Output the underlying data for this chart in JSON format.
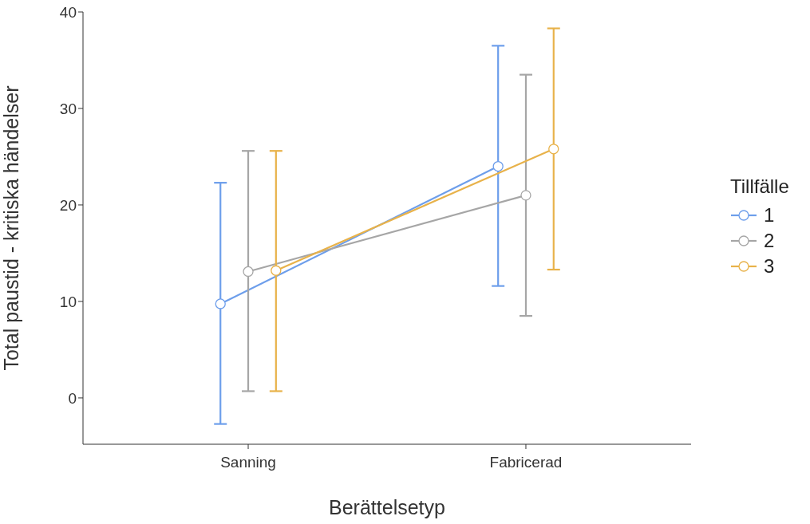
{
  "chart_data": {
    "type": "line",
    "xlabel": "Berättelsetyp",
    "ylabel": "Total paustid - kritiska händelser",
    "legend_title": "Tillfälle",
    "categories": [
      "Sanning",
      "Fabricerad"
    ],
    "ylim": [
      -4.8,
      40
    ],
    "yticks": [
      0,
      10,
      20,
      30,
      40
    ],
    "grid": false,
    "legend": "right",
    "marker": "circle",
    "line_style": "solid",
    "series": [
      {
        "name": "1",
        "color": "#6d9eeb",
        "values": [
          9.75,
          24.0
        ],
        "errors": [
          [
            -2.7,
            22.3
          ],
          [
            11.6,
            36.5
          ]
        ]
      },
      {
        "name": "2",
        "color": "#a6a6a6",
        "values": [
          13.1,
          21.0
        ],
        "errors": [
          [
            0.7,
            25.6
          ],
          [
            8.5,
            33.5
          ]
        ]
      },
      {
        "name": "3",
        "color": "#e8b24a",
        "values": [
          13.2,
          25.8
        ],
        "errors": [
          [
            0.7,
            25.6
          ],
          [
            13.3,
            38.3
          ]
        ]
      }
    ]
  }
}
